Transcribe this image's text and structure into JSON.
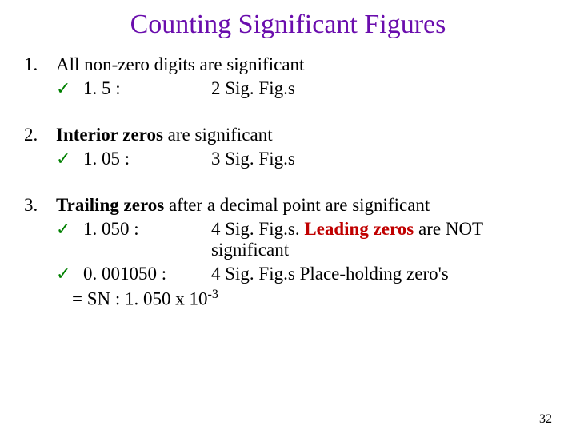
{
  "title": {
    "text": "Counting Significant Figures",
    "color": "#6a0dad",
    "fontsize": 34
  },
  "rules": [
    {
      "num": "1.",
      "text_prefix": "All non-zero digits",
      "text_suffix": " are significant",
      "examples": [
        {
          "check": "✓",
          "value": "1. 5 :",
          "result": "2 Sig. Fig.s"
        }
      ]
    },
    {
      "num": "2.",
      "text_prefix": "Interior zeros",
      "text_suffix": " are significant",
      "examples": [
        {
          "check": "✓",
          "value": "1. 05 :",
          "result": "3 Sig. Fig.s"
        }
      ]
    },
    {
      "num": "3.",
      "text_prefix": "Trailing zeros",
      "text_suffix": " after a decimal point are significant",
      "examples": [
        {
          "check": "✓",
          "value": "1. 050 :",
          "result": "4 Sig. Fig.s. ",
          "red_suffix": "Leading zeros",
          "after_red": " are NOT significant"
        },
        {
          "check": "✓",
          "value": "0. 001050 :",
          "result": "4 Sig. Fig.s  Place-holding zero's"
        }
      ],
      "sn_line": "= SN : 1. 050 x 10",
      "sn_exp": "-3"
    }
  ],
  "page_number": "32",
  "colors": {
    "title": "#6a0dad",
    "check": "#008000",
    "red": "#c00000",
    "text": "#000000",
    "background": "#ffffff"
  }
}
